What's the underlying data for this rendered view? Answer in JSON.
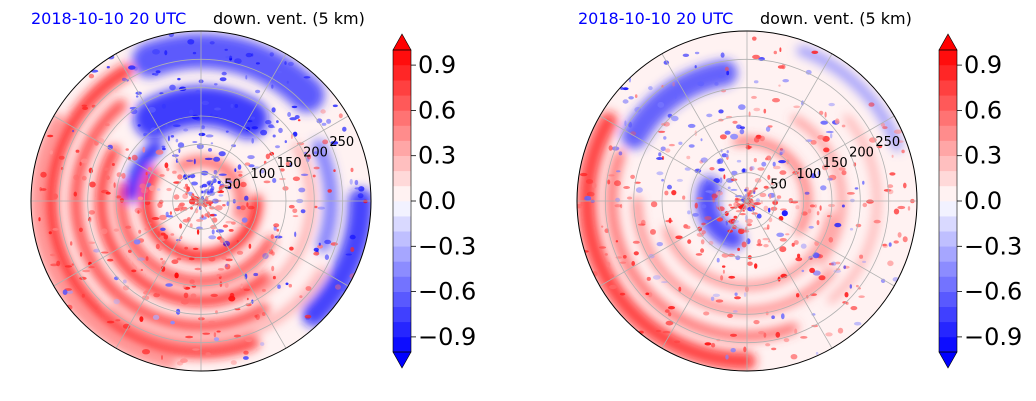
{
  "chart_data": [
    {
      "type": "heatmap",
      "projection": "polar",
      "title_left": "2018-10-10 20 UTC",
      "title_right": "down. vent. (5 km)",
      "title_left_color": "#0000ff",
      "ring_labels": [
        50,
        100,
        150,
        200,
        250
      ],
      "ring_label_text": [
        "50",
        "100",
        "150",
        "200",
        "250"
      ],
      "rlim": [
        0,
        300
      ],
      "spokes_deg": [
        0,
        30,
        60,
        90,
        120,
        150,
        180,
        210,
        240,
        270,
        300,
        330
      ],
      "grid": true,
      "colorbar": {
        "cmap": "bwr",
        "vmin": -1.0,
        "vmax": 1.0,
        "levels": 20,
        "extend": "both",
        "ticks": [
          0.9,
          0.6,
          0.3,
          0.0,
          -0.3,
          -0.6,
          -0.9
        ],
        "tick_labels": [
          "0.9",
          "0.6",
          "0.3",
          "0.0",
          "−0.3",
          "−0.6",
          "−0.9"
        ]
      },
      "pattern": "left"
    },
    {
      "type": "heatmap",
      "projection": "polar",
      "title_left": "2018-10-10 20 UTC",
      "title_right": "down. vent. (5 km)",
      "title_left_color": "#0000ff",
      "ring_labels": [
        50,
        100,
        150,
        200,
        250
      ],
      "ring_label_text": [
        "50",
        "100",
        "150",
        "200",
        "250"
      ],
      "rlim": [
        0,
        300
      ],
      "spokes_deg": [
        0,
        30,
        60,
        90,
        120,
        150,
        180,
        210,
        240,
        270,
        300,
        330
      ],
      "grid": true,
      "colorbar": {
        "cmap": "bwr",
        "vmin": -1.0,
        "vmax": 1.0,
        "levels": 20,
        "extend": "both",
        "ticks": [
          0.9,
          0.6,
          0.3,
          0.0,
          -0.3,
          -0.6,
          -0.9
        ],
        "tick_labels": [
          "0.9",
          "0.6",
          "0.3",
          "0.0",
          "−0.3",
          "−0.6",
          "−0.9"
        ]
      },
      "pattern": "right"
    }
  ]
}
